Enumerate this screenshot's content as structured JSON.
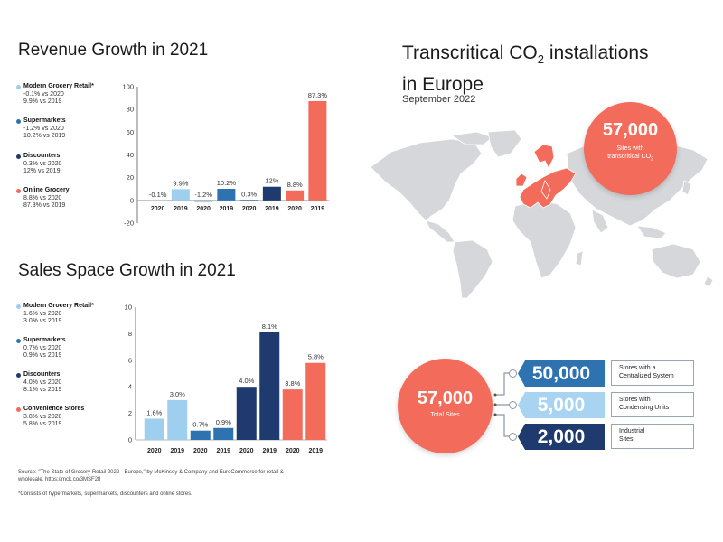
{
  "revenue": {
    "title": "Revenue Growth in 2021",
    "legend": [
      {
        "name": "Modern Grocery Retail*",
        "lines": [
          "-0.1% vs 2020",
          "9.9% vs 2019"
        ],
        "color": "#9fcfee"
      },
      {
        "name": "Supermarkets",
        "lines": [
          "-1.2% vs 2020",
          "10.2% vs 2019"
        ],
        "color": "#2f72b0"
      },
      {
        "name": "Discounters",
        "lines": [
          "0.3% vs 2020",
          "12% vs 2019"
        ],
        "color": "#1f3a6e"
      },
      {
        "name": "Online Grocery",
        "lines": [
          "8.8% vs 2020",
          "87.3% vs 2019"
        ],
        "color": "#f26b5b"
      }
    ]
  },
  "sales": {
    "title": "Sales Space Growth in 2021",
    "legend": [
      {
        "name": "Modern Grocery Retail*",
        "lines": [
          "1.6% vs 2020",
          "3.0% vs 2019"
        ],
        "color": "#9fcfee"
      },
      {
        "name": "Supermarkets",
        "lines": [
          "0.7% vs 2020",
          "0.9% vs 2019"
        ],
        "color": "#2f72b0"
      },
      {
        "name": "Discounters",
        "lines": [
          "4.0% vs 2020",
          "8.1% vs 2019"
        ],
        "color": "#1f3a6e"
      },
      {
        "name": "Convenience Stores",
        "lines": [
          "3.8% vs 2020",
          "5.8% vs 2019"
        ],
        "color": "#f26b5b"
      }
    ]
  },
  "chart_data": [
    {
      "type": "bar",
      "title": "Revenue Growth in 2021",
      "categories": [
        "2020",
        "2019",
        "2020",
        "2019",
        "2020",
        "2019",
        "2020",
        "2019"
      ],
      "values": [
        -0.1,
        9.9,
        -1.2,
        10.2,
        0.3,
        12,
        8.8,
        87.3
      ],
      "labels": [
        "-0.1%",
        "9.9%",
        "-1.2%",
        "10.2%",
        "0.3%",
        "12%",
        "8.8%",
        "87.3%"
      ],
      "colors": [
        "#9fcfee",
        "#9fcfee",
        "#2f72b0",
        "#2f72b0",
        "#1f3a6e",
        "#1f3a6e",
        "#f26b5b",
        "#f26b5b"
      ],
      "ylim": [
        -20,
        100
      ],
      "yticks": [
        -20,
        0,
        20,
        40,
        60,
        80,
        100
      ]
    },
    {
      "type": "bar",
      "title": "Sales Space Growth in 2021",
      "categories": [
        "2020",
        "2019",
        "2020",
        "2019",
        "2020",
        "2019",
        "2020",
        "2019"
      ],
      "values": [
        1.6,
        3.0,
        0.7,
        0.9,
        4.0,
        8.1,
        3.8,
        5.8
      ],
      "labels": [
        "1.6%",
        "3.0%",
        "0.7%",
        "0.9%",
        "4.0%",
        "8.1%",
        "3.8%",
        "5.8%"
      ],
      "colors": [
        "#9fcfee",
        "#9fcfee",
        "#2f72b0",
        "#2f72b0",
        "#1f3a6e",
        "#1f3a6e",
        "#f26b5b",
        "#f26b5b"
      ],
      "ylim": [
        0,
        10
      ],
      "yticks": [
        0,
        2,
        4,
        6,
        8,
        10
      ]
    }
  ],
  "footer": {
    "source_line1": "Source: \"The State of Grocery Retail 2022 - Europe,\" by McKinsey & Company and EuroCommerce for retail &",
    "source_line2": "wholesale, https://mck.co/3MSF2fl",
    "footnote": "*Consists of hypermarkets, supermarkets, discounters and online stores."
  },
  "co2": {
    "title_line1": "Transcritical CO",
    "title_sub": "2",
    "title_rest": " installations",
    "title_line2": "in Europe",
    "date": "September 2022",
    "map_circle": {
      "value": "57,000",
      "line1": "Sites with",
      "line2": "transcritical CO",
      "line2_sub": "2"
    },
    "total_circle": {
      "value": "57,000",
      "label": "Total Sites"
    },
    "breakdown": [
      {
        "value": "50,000",
        "line1": "Stores with a",
        "line2": "Centralized System",
        "color": "#2f72b0",
        "textColor": "#ffffff"
      },
      {
        "value": "5,000",
        "line1": "Stores with",
        "line2": "Condensing Units",
        "color": "#a8d4f2",
        "textColor": "#ffffff"
      },
      {
        "value": "2,000",
        "line1": "Industrial",
        "line2": "Sites",
        "color": "#1f3a6e",
        "textColor": "#ffffff"
      }
    ],
    "colors": {
      "map": "#d5d7da",
      "europe": "#f26b5b"
    }
  }
}
